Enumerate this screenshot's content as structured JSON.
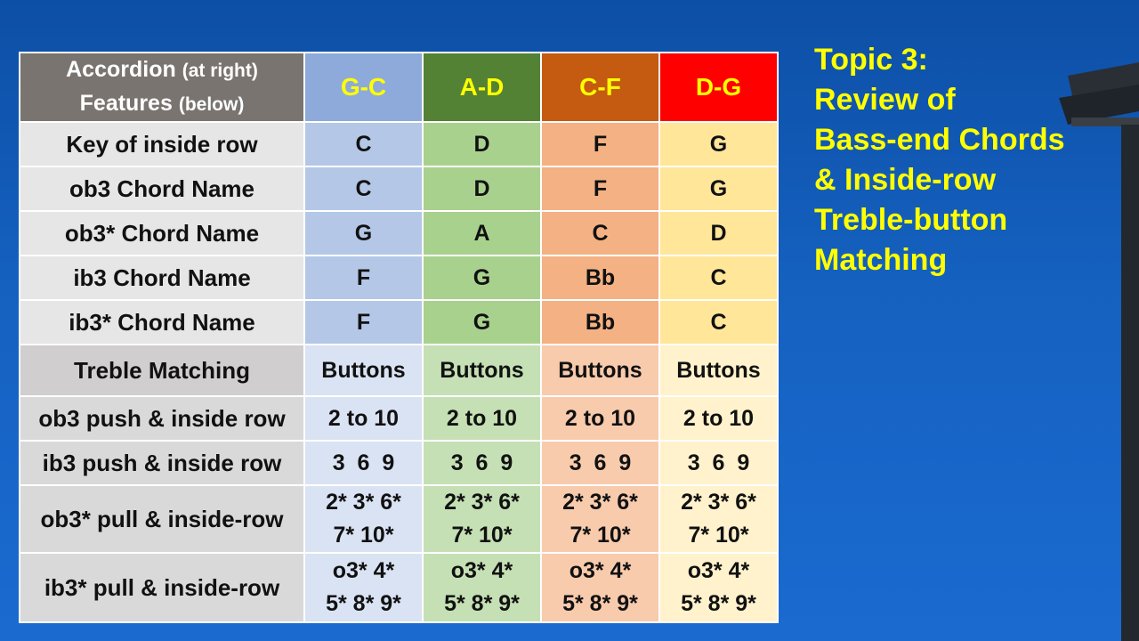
{
  "header": {
    "accordion": "Accordion",
    "at_right": "(at right)",
    "features": "Features",
    "below": "(below)",
    "keys": [
      "G-C",
      "A-D",
      "C-F",
      "D-G"
    ]
  },
  "rows_upper": [
    {
      "label": "Key of inside row",
      "values": [
        "C",
        "D",
        "F",
        "G"
      ]
    },
    {
      "label": "ob3 Chord Name",
      "values": [
        "C",
        "D",
        "F",
        "G"
      ]
    },
    {
      "label": "ob3* Chord Name",
      "values": [
        "G",
        "A",
        "C",
        "D"
      ]
    },
    {
      "label": "ib3 Chord Name",
      "values": [
        "F",
        "G",
        "Bb",
        "C"
      ]
    },
    {
      "label": "ib3* Chord Name",
      "values": [
        "F",
        "G",
        "Bb",
        "C"
      ]
    }
  ],
  "treble_header": {
    "label": "Treble Matching",
    "values": [
      "Buttons",
      "Buttons",
      "Buttons",
      "Buttons"
    ]
  },
  "rows_lower": [
    {
      "label": "ob3 push & inside row",
      "values": [
        "2 to 10",
        "2 to 10",
        "2 to 10",
        "2 to 10"
      ]
    },
    {
      "label": "ib3 push & inside row",
      "values": [
        "3  6  9",
        "3  6  9",
        "3  6  9",
        "3  6  9"
      ]
    },
    {
      "label": "ob3* pull & inside-row",
      "values": [
        [
          "2* 3* 6*",
          "7* 10*"
        ],
        [
          "2* 3* 6*",
          "7* 10*"
        ],
        [
          "2* 3* 6*",
          "7* 10*"
        ],
        [
          "2* 3* 6*",
          "7* 10*"
        ]
      ]
    },
    {
      "label": "ib3* pull & inside-row",
      "values": [
        [
          "o3* 4*",
          "5* 8* 9*"
        ],
        [
          "o3* 4*",
          "5* 8* 9*"
        ],
        [
          "o3* 4*",
          "5* 8* 9*"
        ],
        [
          "o3* 4*",
          "5* 8* 9*"
        ]
      ]
    }
  ],
  "topic": {
    "lines": [
      "Topic 3:",
      "Review of",
      "Bass-end Chords",
      "& Inside-row",
      "Treble-button",
      "Matching"
    ]
  },
  "colors": {
    "background": "#1561c0",
    "topic_text": "#ffff00",
    "key_gc": "#8eaadb",
    "key_ad": "#548235",
    "key_cf": "#c55a11",
    "key_dg": "#ff0000"
  },
  "icons": [
    "lamp-post-icon"
  ]
}
